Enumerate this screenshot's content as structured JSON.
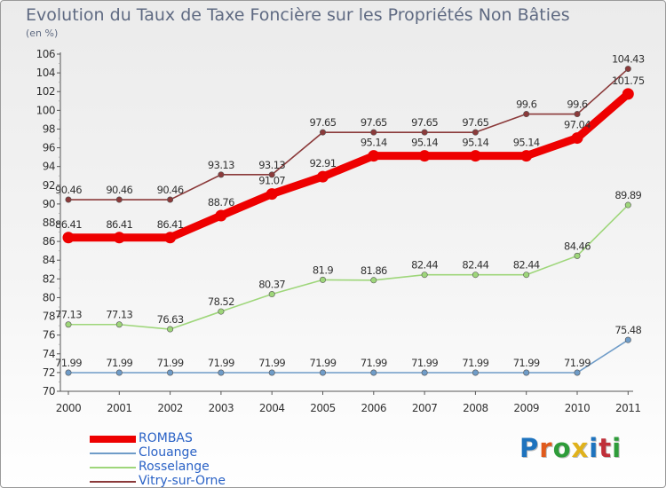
{
  "header": {
    "title": "Evolution du Taux de Taxe Foncière sur les Propriétés Non Bâties",
    "unit": "(en %)"
  },
  "logo": {
    "text": "Proxiti",
    "letter_colors": [
      "#1e73be",
      "#e05a1c",
      "#2e9c3a",
      "#e0b21c",
      "#1e73be",
      "#c0303a",
      "#2e9c3a"
    ]
  },
  "chart_data": {
    "type": "line",
    "x": [
      "2000",
      "2001",
      "2002",
      "2003",
      "2004",
      "2005",
      "2006",
      "2007",
      "2008",
      "2009",
      "2010",
      "2011"
    ],
    "ylim": [
      70,
      106
    ],
    "yticks": [
      70,
      72,
      74,
      76,
      78,
      80,
      82,
      84,
      86,
      88,
      90,
      92,
      94,
      96,
      98,
      100,
      102,
      104,
      106
    ],
    "grid": false,
    "legend_position": "bottom-left",
    "series": [
      {
        "name": "ROMBAS",
        "color": "#ee0000",
        "emphasis": true,
        "values": [
          86.41,
          86.41,
          86.41,
          88.76,
          91.07,
          92.91,
          95.14,
          95.14,
          95.14,
          95.14,
          97.04,
          101.75
        ],
        "labels": [
          "86.41",
          "86.41",
          "86.41",
          "88.76",
          "91.07",
          "92.91",
          "95.14",
          "95.14",
          "95.14",
          "95.14",
          "97.04",
          "101.75"
        ]
      },
      {
        "name": "Clouange",
        "color": "#6f9cc8",
        "emphasis": false,
        "values": [
          71.99,
          71.99,
          71.99,
          71.99,
          71.99,
          71.99,
          71.99,
          71.99,
          71.99,
          71.99,
          71.99,
          75.48
        ],
        "labels": [
          "71.99",
          "71.99",
          "71.99",
          "71.99",
          "71.99",
          "71.99",
          "71.99",
          "71.99",
          "71.99",
          "71.99",
          "71.99",
          "75.48"
        ]
      },
      {
        "name": "Rosselange",
        "color": "#9ed67a",
        "emphasis": false,
        "values": [
          77.13,
          77.13,
          76.63,
          78.52,
          80.37,
          81.9,
          81.86,
          82.44,
          82.44,
          82.44,
          84.46,
          89.89
        ],
        "labels": [
          "77.13",
          "77.13",
          "76.63",
          "78.52",
          "80.37",
          "81.9",
          "81.86",
          "82.44",
          "82.44",
          "82.44",
          "84.46",
          "89.89"
        ]
      },
      {
        "name": "Vitry-sur-Orne",
        "color": "#8b3a3a",
        "emphasis": false,
        "values": [
          90.46,
          90.46,
          90.46,
          93.13,
          93.13,
          97.65,
          97.65,
          97.65,
          97.65,
          99.6,
          99.6,
          104.43
        ],
        "labels": [
          "90.46",
          "90.46",
          "90.46",
          "93.13",
          "93.13",
          "97.65",
          "97.65",
          "97.65",
          "97.65",
          "99.6",
          "99.6",
          "104.43"
        ]
      }
    ]
  }
}
